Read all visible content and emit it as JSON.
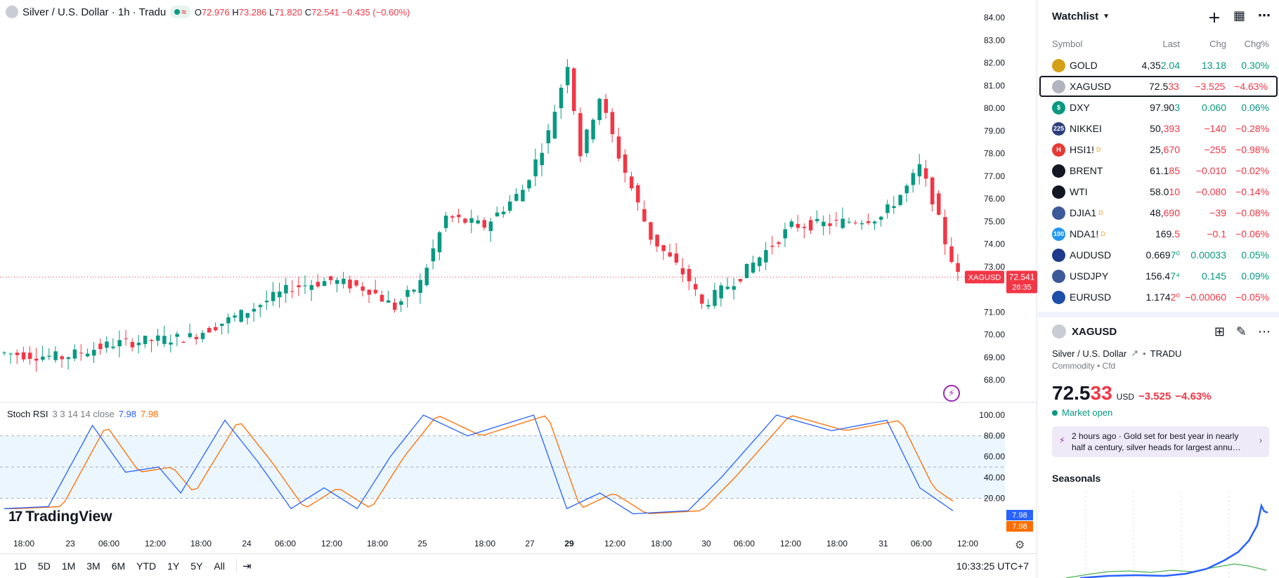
{
  "legend": {
    "title": "Silver / U.S. Dollar · 1h · Tradu",
    "open_label": "O",
    "open": "72.976",
    "high_label": "H",
    "high": "73.286",
    "low_label": "L",
    "low": "71.820",
    "close_label": "C",
    "close": "72.541",
    "change": "−0.435 (−0.60%)"
  },
  "price_axis": {
    "ticks": [
      "84.00",
      "83.00",
      "82.00",
      "81.00",
      "80.00",
      "79.00",
      "78.00",
      "77.00",
      "76.00",
      "75.00",
      "74.00",
      "73.00",
      "71.00",
      "70.00",
      "69.00",
      "68.00"
    ],
    "last_symbol": "XAGUSD",
    "last_price": "72.541",
    "countdown": "26:35"
  },
  "stoch_rsi": {
    "name": "Stoch RSI",
    "params": "3 3 14 14 close",
    "k_value": "7.98",
    "d_value": "7.98",
    "ticks": [
      "100.00",
      "80.00",
      "60.00",
      "40.00",
      "20.00"
    ],
    "k_badge": "7.98",
    "d_badge": "7.98"
  },
  "time_axis": {
    "labels": [
      "18:00",
      "23",
      "06:00",
      "12:00",
      "18:00",
      "24",
      "06:00",
      "12:00",
      "18:00",
      "25",
      "18:00",
      "27",
      "29",
      "12:00",
      "18:00",
      "30",
      "06:00",
      "12:00",
      "18:00",
      "31",
      "06:00",
      "12:00"
    ]
  },
  "branding": {
    "logo": "TradingView"
  },
  "bottom_bar": {
    "ranges": [
      "1D",
      "5D",
      "1M",
      "3M",
      "6M",
      "YTD",
      "1Y",
      "5Y",
      "All"
    ],
    "clock": "10:33:25 UTC+7"
  },
  "colors": {
    "up": "#089981",
    "down": "#f23645",
    "k_line": "#2962ff",
    "d_line": "#ff6d00"
  },
  "watchlist": {
    "title": "Watchlist",
    "columns": {
      "symbol": "Symbol",
      "last": "Last",
      "chg": "Chg",
      "pct": "Chg%"
    },
    "rows": [
      {
        "symbol": "GOLD",
        "last_main": "4,35",
        "last_tail": "2.04",
        "chg": "13.18",
        "pct": "0.30%",
        "dir": "up",
        "icon": "gold-icon",
        "icon_color": "#d4a017",
        "icon_text": "",
        "sup": ""
      },
      {
        "symbol": "XAGUSD",
        "last_main": "72.5",
        "last_tail": "33",
        "chg": "−3.525",
        "pct": "−4.63%",
        "dir": "down",
        "icon": "silver-icon",
        "icon_color": "#b2b5be",
        "icon_text": "",
        "sup": "",
        "selected": true
      },
      {
        "symbol": "DXY",
        "last_main": "97.90",
        "last_tail": "3",
        "chg": "0.060",
        "pct": "0.06%",
        "dir": "up",
        "icon": "dollar-icon",
        "icon_color": "#089981",
        "icon_text": "$",
        "sup": ""
      },
      {
        "symbol": "NIKKEI",
        "last_main": "50,",
        "last_tail": "393",
        "chg": "−140",
        "pct": "−0.28%",
        "dir": "down",
        "icon": "nikkei-icon",
        "icon_color": "#2a3d7c",
        "icon_text": "225",
        "sup": ""
      },
      {
        "symbol": "HSI1!",
        "last_main": "25,",
        "last_tail": "670",
        "chg": "−255",
        "pct": "−0.98%",
        "dir": "down",
        "icon": "hsi-icon",
        "icon_color": "#e53935",
        "icon_text": "H",
        "sup": "D"
      },
      {
        "symbol": "BRENT",
        "last_main": "61.1",
        "last_tail": "85",
        "chg": "−0.010",
        "pct": "−0.02%",
        "dir": "down",
        "icon": "oil-drop-icon",
        "icon_color": "#131722",
        "icon_text": "",
        "sup": ""
      },
      {
        "symbol": "WTI",
        "last_main": "58.0",
        "last_tail": "10",
        "chg": "−0.080",
        "pct": "−0.14%",
        "dir": "down",
        "icon": "oil-drop-icon",
        "icon_color": "#131722",
        "icon_text": "",
        "sup": ""
      },
      {
        "symbol": "DJIA1",
        "last_main": "48,",
        "last_tail": "690",
        "chg": "−39",
        "pct": "−0.08%",
        "dir": "down",
        "icon": "us-flag-icon",
        "icon_color": "#3c5a99",
        "icon_text": "",
        "sup": "D"
      },
      {
        "symbol": "NDA1!",
        "last_main": "169.",
        "last_tail": "5",
        "chg": "−0.1",
        "pct": "−0.06%",
        "dir": "down",
        "icon": "nasdaq-icon",
        "icon_color": "#2196f3",
        "icon_text": "100",
        "sup": "D"
      },
      {
        "symbol": "AUDUSD",
        "last_main": "0.669",
        "last_tail": "7⁰",
        "chg": "0.00033",
        "pct": "0.05%",
        "dir": "up",
        "icon": "au-flag-icon",
        "icon_color": "#1e3a8a",
        "icon_text": "",
        "sup": ""
      },
      {
        "symbol": "USDJPY",
        "last_main": "156.4",
        "last_tail": "7⁴",
        "chg": "0.145",
        "pct": "0.09%",
        "dir": "up",
        "icon": "us-flag-icon",
        "icon_color": "#3c5a99",
        "icon_text": "",
        "sup": ""
      },
      {
        "symbol": "EURUSD",
        "last_main": "1.174",
        "last_tail": "2⁰",
        "chg": "−0.00060",
        "pct": "−0.05%",
        "dir": "down",
        "icon": "eu-flag-icon",
        "icon_color": "#1e4fa8",
        "icon_text": "",
        "sup": ""
      }
    ]
  },
  "detail": {
    "symbol": "XAGUSD",
    "description": "Silver / U.S. Dollar",
    "exchange": "TRADU",
    "type": "Commodity • Cfd",
    "price_main": "72.5",
    "price_tail": "33",
    "currency": "USD",
    "change": "−3.525",
    "change_pct": "−4.63%",
    "status": "Market open",
    "news": "2 hours ago · Gold set for best year in nearly half a century, silver heads for largest annu…",
    "seasonals_title": "Seasonals"
  }
}
